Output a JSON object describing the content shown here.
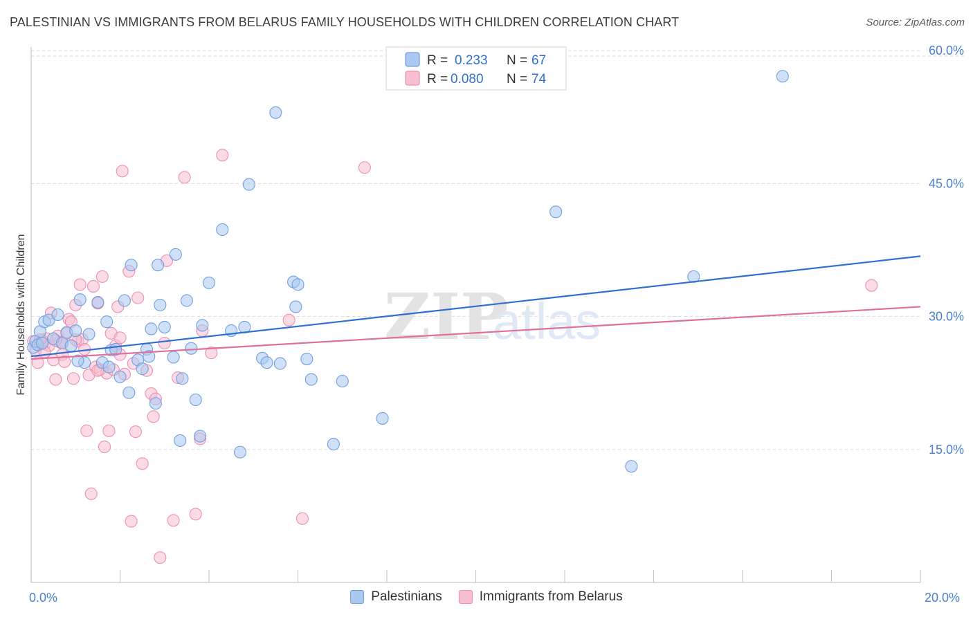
{
  "title": "PALESTINIAN VS IMMIGRANTS FROM BELARUS FAMILY HOUSEHOLDS WITH CHILDREN CORRELATION CHART",
  "source": "Source: ZipAtlas.com",
  "watermark": {
    "zip": "ZIP",
    "atlas": "atlas"
  },
  "legend_stats": [
    {
      "r_label": "R =",
      "r_value": "0.233",
      "n_label": "N =",
      "n_value": "67"
    },
    {
      "r_label": "R =",
      "r_value": "0.080",
      "n_label": "N =",
      "n_value": "74"
    }
  ],
  "bottom_legend": [
    "Palestinians",
    "Immigrants from Belarus"
  ],
  "colors": {
    "series1_fill": "#aac8f0",
    "series1_stroke": "#6f9fe0",
    "series1_line": "#2f6fd0",
    "series2_fill": "#f7bfd1",
    "series2_stroke": "#ec8fb0",
    "series2_line": "#e0709a",
    "tick_text": "#4a7fd0",
    "grid": "#d8d8d8"
  },
  "chart_data": {
    "type": "scatter",
    "title": "PALESTINIAN VS IMMIGRANTS FROM BELARUS FAMILY HOUSEHOLDS WITH CHILDREN CORRELATION CHART",
    "xlabel": "",
    "ylabel": "Family Households with Children",
    "xlim": [
      0,
      20
    ],
    "ylim": [
      0,
      60
    ],
    "x_tick_labels": [
      "0.0%",
      "20.0%"
    ],
    "y_ticks": [
      15,
      30,
      45,
      60
    ],
    "y_tick_labels": [
      "15.0%",
      "30.0%",
      "45.0%",
      "60.0%"
    ],
    "grid": true,
    "legend_placement": "top-center",
    "series": [
      {
        "name": "Palestinians",
        "R": 0.233,
        "N": 67,
        "trend": {
          "x": [
            0,
            20
          ],
          "y": [
            25.5,
            36.8
          ]
        },
        "points": [
          [
            0.05,
            26.5
          ],
          [
            0.1,
            27.2
          ],
          [
            0.15,
            26.8
          ],
          [
            0.2,
            28.3
          ],
          [
            0.3,
            29.4
          ],
          [
            0.4,
            29.6
          ],
          [
            0.5,
            27.5
          ],
          [
            0.6,
            30.2
          ],
          [
            0.7,
            27.0
          ],
          [
            0.8,
            28.2
          ],
          [
            0.9,
            26.7
          ],
          [
            1.0,
            28.4
          ],
          [
            1.1,
            31.9
          ],
          [
            1.2,
            24.8
          ],
          [
            1.3,
            28.0
          ],
          [
            1.5,
            31.6
          ],
          [
            1.6,
            24.8
          ],
          [
            1.7,
            29.4
          ],
          [
            1.75,
            24.3
          ],
          [
            1.8,
            26.2
          ],
          [
            1.9,
            26.3
          ],
          [
            2.0,
            23.2
          ],
          [
            2.1,
            31.8
          ],
          [
            2.2,
            21.4
          ],
          [
            2.25,
            35.8
          ],
          [
            2.4,
            25.1
          ],
          [
            2.5,
            24.1
          ],
          [
            2.6,
            26.3
          ],
          [
            2.65,
            25.5
          ],
          [
            2.7,
            28.6
          ],
          [
            2.8,
            20.2
          ],
          [
            2.85,
            35.8
          ],
          [
            2.9,
            31.3
          ],
          [
            3.0,
            28.8
          ],
          [
            3.2,
            25.4
          ],
          [
            3.25,
            37.0
          ],
          [
            3.35,
            16.0
          ],
          [
            3.4,
            23.0
          ],
          [
            3.5,
            31.8
          ],
          [
            3.6,
            26.4
          ],
          [
            3.7,
            20.6
          ],
          [
            3.8,
            16.5
          ],
          [
            3.85,
            29.0
          ],
          [
            4.0,
            33.8
          ],
          [
            4.3,
            39.8
          ],
          [
            4.5,
            28.4
          ],
          [
            4.7,
            14.7
          ],
          [
            4.8,
            28.8
          ],
          [
            4.9,
            44.9
          ],
          [
            5.2,
            25.3
          ],
          [
            5.3,
            24.8
          ],
          [
            5.5,
            53.0
          ],
          [
            5.6,
            24.7
          ],
          [
            5.9,
            33.9
          ],
          [
            6.0,
            33.6
          ],
          [
            5.95,
            31.1
          ],
          [
            6.2,
            25.2
          ],
          [
            6.3,
            22.9
          ],
          [
            6.8,
            15.6
          ],
          [
            7.0,
            22.7
          ],
          [
            7.9,
            18.5
          ],
          [
            11.8,
            41.8
          ],
          [
            13.5,
            13.1
          ],
          [
            14.9,
            34.5
          ],
          [
            16.9,
            57.1
          ],
          [
            0.25,
            27.0
          ],
          [
            1.05,
            25.0
          ]
        ]
      },
      {
        "name": "Immigrants from Belarus",
        "R": 0.08,
        "N": 74,
        "trend": {
          "x": [
            0,
            20
          ],
          "y": [
            25.2,
            31.1
          ]
        },
        "points": [
          [
            0.05,
            27.2
          ],
          [
            0.1,
            26.2
          ],
          [
            0.15,
            24.8
          ],
          [
            0.2,
            26.9
          ],
          [
            0.25,
            27.3
          ],
          [
            0.3,
            26.9
          ],
          [
            0.35,
            27.5
          ],
          [
            0.4,
            26.7
          ],
          [
            0.45,
            30.4
          ],
          [
            0.5,
            25.1
          ],
          [
            0.55,
            22.9
          ],
          [
            0.6,
            27.8
          ],
          [
            0.65,
            27.1
          ],
          [
            0.7,
            25.7
          ],
          [
            0.75,
            24.9
          ],
          [
            0.8,
            28.1
          ],
          [
            0.85,
            29.7
          ],
          [
            0.9,
            29.4
          ],
          [
            0.95,
            23.0
          ],
          [
            1.0,
            31.3
          ],
          [
            1.05,
            27.2
          ],
          [
            1.1,
            33.6
          ],
          [
            1.15,
            27.4
          ],
          [
            1.2,
            26.3
          ],
          [
            1.25,
            17.1
          ],
          [
            1.3,
            23.4
          ],
          [
            1.35,
            10.0
          ],
          [
            1.4,
            33.4
          ],
          [
            1.45,
            24.3
          ],
          [
            1.5,
            31.5
          ],
          [
            1.55,
            24.0
          ],
          [
            1.6,
            34.5
          ],
          [
            1.65,
            15.3
          ],
          [
            1.7,
            23.6
          ],
          [
            1.75,
            17.1
          ],
          [
            1.8,
            28.1
          ],
          [
            1.85,
            24.0
          ],
          [
            1.9,
            26.7
          ],
          [
            1.95,
            31.1
          ],
          [
            2.0,
            27.6
          ],
          [
            2.05,
            46.4
          ],
          [
            2.1,
            23.5
          ],
          [
            2.2,
            35.1
          ],
          [
            2.25,
            6.9
          ],
          [
            2.3,
            24.7
          ],
          [
            2.35,
            17.0
          ],
          [
            2.4,
            32.1
          ],
          [
            2.5,
            13.4
          ],
          [
            2.6,
            23.9
          ],
          [
            2.7,
            21.3
          ],
          [
            2.75,
            18.7
          ],
          [
            2.8,
            20.7
          ],
          [
            2.9,
            2.8
          ],
          [
            3.0,
            27.0
          ],
          [
            3.05,
            36.3
          ],
          [
            3.2,
            7.0
          ],
          [
            3.3,
            23.1
          ],
          [
            3.45,
            45.7
          ],
          [
            3.7,
            7.7
          ],
          [
            3.8,
            16.2
          ],
          [
            3.85,
            28.4
          ],
          [
            4.05,
            25.9
          ],
          [
            4.3,
            48.2
          ],
          [
            5.8,
            29.6
          ],
          [
            6.1,
            7.2
          ],
          [
            7.5,
            46.8
          ],
          [
            18.9,
            33.5
          ],
          [
            0.3,
            26.0
          ],
          [
            0.7,
            27.0
          ],
          [
            1.0,
            27.4
          ],
          [
            1.5,
            23.9
          ],
          [
            2.0,
            25.7
          ],
          [
            0.2,
            27.4
          ],
          [
            0.55,
            27.3
          ]
        ]
      }
    ]
  }
}
